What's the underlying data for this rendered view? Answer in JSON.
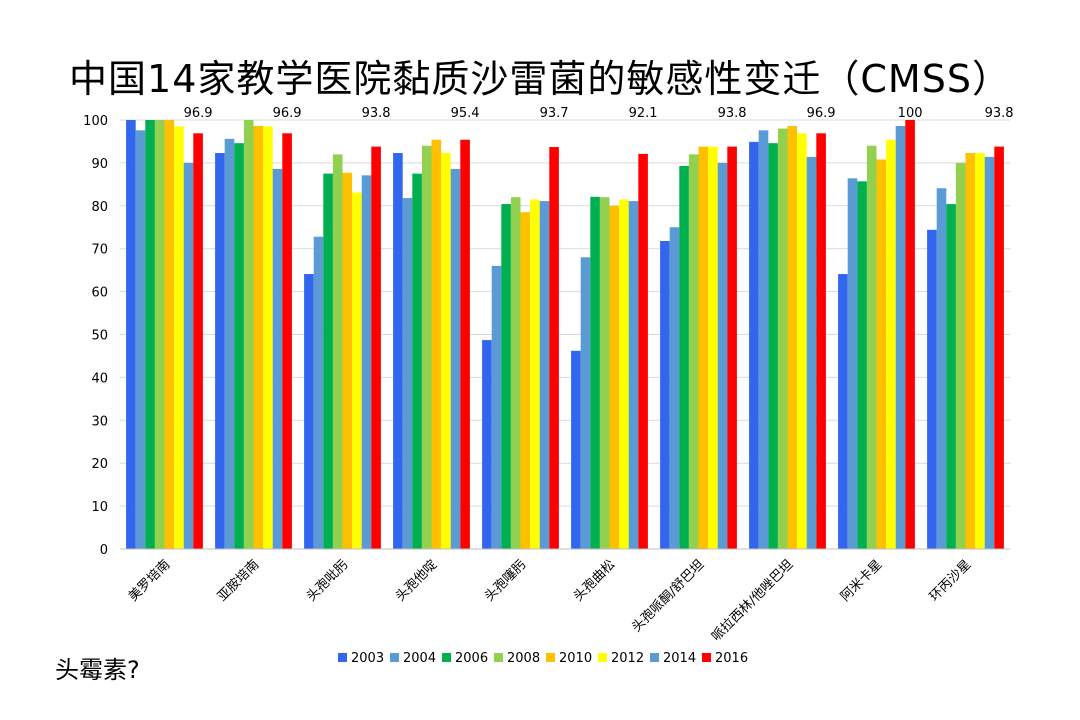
{
  "title": "中国14家教学医院黏质沙雷菌的敏感性变迁（CMSS）",
  "note": "头霉素?",
  "chart_data": {
    "type": "bar",
    "categories": [
      "美罗培南",
      "亚胺培南",
      "头孢吡肟",
      "头孢他啶",
      "头孢噻肟",
      "头孢曲松",
      "头孢哌酮/舒巴坦",
      "哌拉西林/他唑巴坦",
      "阿米卡星",
      "环丙沙星"
    ],
    "series": [
      {
        "name": "2003",
        "color": "#3366ee",
        "values": [
          100,
          92.3,
          64.1,
          92.3,
          48.7,
          46.2,
          71.8,
          94.9,
          64.1,
          74.4
        ]
      },
      {
        "name": "2004",
        "color": "#5b9bd5",
        "values": [
          97.6,
          95.6,
          72.8,
          81.8,
          66.0,
          68.0,
          75.0,
          97.6,
          86.4,
          84.1
        ]
      },
      {
        "name": "2006",
        "color": "#00b050",
        "values": [
          100,
          94.6,
          87.5,
          87.5,
          80.4,
          82.1,
          89.3,
          94.6,
          85.7,
          80.4
        ]
      },
      {
        "name": "2008",
        "color": "#92d050",
        "values": [
          100,
          100,
          92.0,
          94.0,
          82.0,
          82.0,
          92.0,
          98.0,
          94.0,
          90.0
        ]
      },
      {
        "name": "2010",
        "color": "#ffc000",
        "values": [
          100,
          98.6,
          87.7,
          95.4,
          78.5,
          80.0,
          93.8,
          98.6,
          90.8,
          92.3
        ]
      },
      {
        "name": "2012",
        "color": "#ffff00",
        "values": [
          98.5,
          98.5,
          83.1,
          92.3,
          81.5,
          81.5,
          93.8,
          96.9,
          95.4,
          92.3
        ]
      },
      {
        "name": "2014",
        "color": "#5b9bd5",
        "values": [
          90.0,
          88.6,
          87.1,
          88.6,
          81.1,
          81.1,
          90.0,
          91.4,
          98.6,
          91.4
        ]
      },
      {
        "name": "2016",
        "color": "#ff0000",
        "values": [
          96.9,
          96.9,
          93.8,
          95.4,
          93.7,
          92.1,
          93.8,
          96.9,
          100,
          93.8
        ]
      }
    ],
    "data_labels": [
      "96.9",
      "96.9",
      "93.8",
      "95.4",
      "93.7",
      "92.1",
      "93.8",
      "96.9",
      "100",
      "93.8"
    ],
    "ylim": [
      0,
      100
    ],
    "yticks": [
      0,
      10,
      20,
      30,
      40,
      50,
      60,
      70,
      80,
      90,
      100
    ],
    "legend_position": "bottom",
    "grid": true
  }
}
